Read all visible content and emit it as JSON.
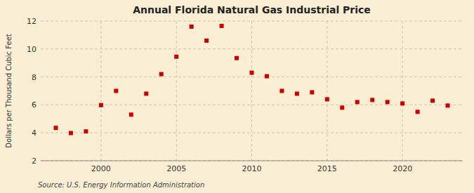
{
  "chart_data": {
    "type": "scatter",
    "title": "Annual Florida Natural Gas Industrial Price",
    "y_label": "Dollars per Thousand Cubic Feet",
    "annotations": [
      "Source: U.S. Energy Information Administration"
    ],
    "x": [
      1997,
      1998,
      1999,
      2000,
      2001,
      2002,
      2003,
      2004,
      2005,
      2006,
      2007,
      2008,
      2009,
      2010,
      2011,
      2012,
      2013,
      2014,
      2015,
      2016,
      2017,
      2018,
      2019,
      2020,
      2021,
      2022,
      2023
    ],
    "values": [
      4.35,
      3.98,
      4.1,
      5.98,
      7.0,
      5.3,
      6.8,
      8.2,
      9.45,
      11.6,
      10.6,
      11.65,
      9.35,
      8.3,
      8.05,
      7.0,
      6.8,
      6.9,
      6.4,
      5.8,
      6.2,
      6.35,
      6.2,
      6.1,
      5.5,
      6.3,
      5.95
    ],
    "color": "#cc0000",
    "marker": "square",
    "xlim": [
      1996,
      2024
    ],
    "xticks": [
      2000,
      2005,
      2010,
      2015,
      2020
    ],
    "ylim": [
      2,
      12
    ],
    "yticks": [
      2,
      4,
      6,
      8,
      10,
      12
    ],
    "grid": true
  }
}
